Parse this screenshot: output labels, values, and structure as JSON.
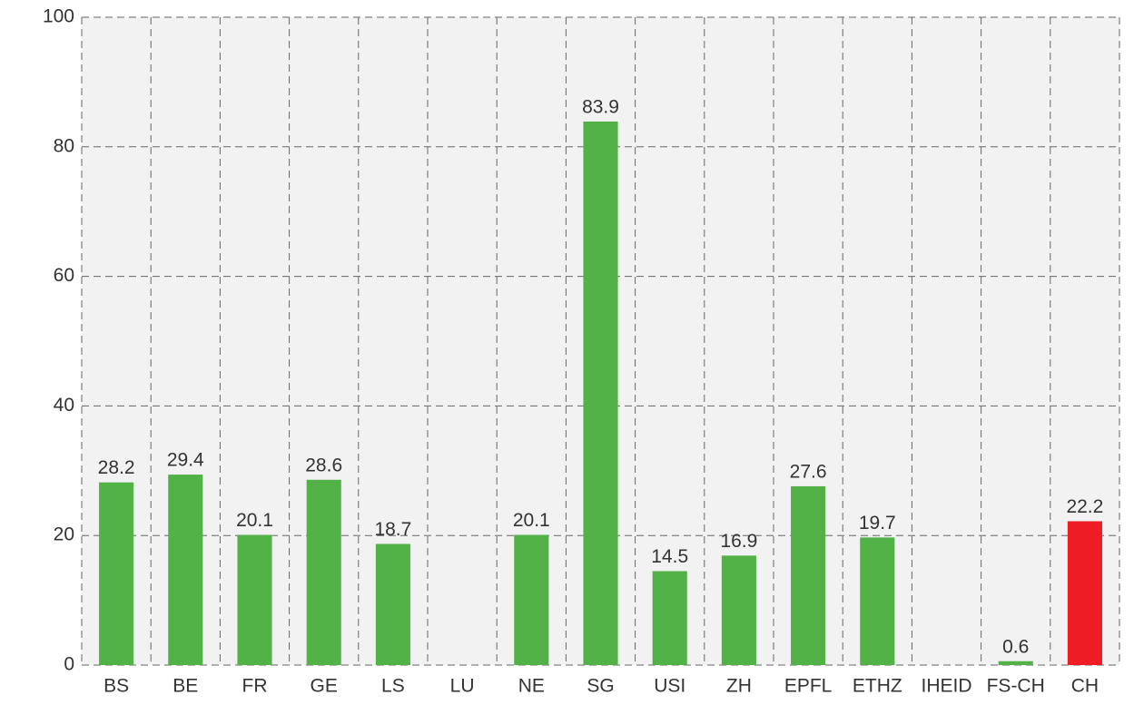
{
  "chart_data": {
    "type": "bar",
    "categories": [
      "BS",
      "BE",
      "FR",
      "GE",
      "LS",
      "LU",
      "NE",
      "SG",
      "USI",
      "ZH",
      "EPFL",
      "ETHZ",
      "IHEID",
      "FS-CH",
      "CH"
    ],
    "values": [
      28.2,
      29.4,
      20.1,
      28.6,
      18.7,
      null,
      20.1,
      83.9,
      14.5,
      16.9,
      27.6,
      19.7,
      null,
      0.6,
      22.2
    ],
    "colors": [
      "#52b147",
      "#52b147",
      "#52b147",
      "#52b147",
      "#52b147",
      "#52b147",
      "#52b147",
      "#52b147",
      "#52b147",
      "#52b147",
      "#52b147",
      "#52b147",
      "#52b147",
      "#52b147",
      "#ee1c25"
    ],
    "ylim": [
      0,
      100
    ],
    "yticks": [
      0,
      20,
      40,
      60,
      80,
      100
    ],
    "grid": true
  }
}
